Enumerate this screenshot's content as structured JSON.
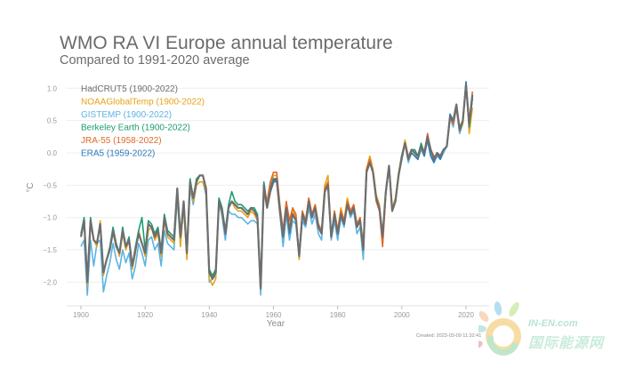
{
  "chart_data": {
    "type": "line",
    "title": "WMO RA VI Europe annual temperature",
    "subtitle": "Compared to 1991-2020 average",
    "xlabel": "Year",
    "ylabel": "°C",
    "xlim": [
      1896,
      2024
    ],
    "ylim": [
      -2.35,
      1.2
    ],
    "grid": true,
    "legend_placement": "top-left",
    "x_ticks": [
      1900,
      1920,
      1940,
      1960,
      1980,
      2000,
      2020
    ],
    "x_tick_labels": [
      "1900",
      "1920",
      "1940",
      "1960",
      "1980",
      "2000",
      "2020"
    ],
    "y_ticks": [
      1.0,
      0.5,
      0.0,
      -0.5,
      -1.0,
      -1.5,
      -2.0
    ],
    "y_tick_labels": [
      "1.0",
      "0.5",
      "0.0",
      "−0.5",
      "−1.0",
      "−1.5",
      "−2.0"
    ],
    "series": [
      {
        "name": "HadCRUT5 (1900-2022)",
        "color": "#6e6e6e",
        "start_year": 1900,
        "values": [
          -1.3,
          -1.05,
          -2.0,
          -1.05,
          -1.35,
          -1.4,
          -1.1,
          -1.85,
          -1.65,
          -1.5,
          -1.2,
          -1.45,
          -1.55,
          -1.2,
          -1.45,
          -1.35,
          -1.75,
          -1.5,
          -1.25,
          -1.4,
          -1.55,
          -1.1,
          -1.15,
          -1.3,
          -1.2,
          -1.55,
          -1.0,
          -1.25,
          -1.3,
          -1.35,
          -0.55,
          -1.3,
          -0.75,
          -1.55,
          -0.45,
          -0.7,
          -0.45,
          -0.35,
          -0.35,
          -0.55,
          -1.85,
          -1.95,
          -1.85,
          -0.75,
          -0.9,
          -1.25,
          -0.85,
          -0.75,
          -0.8,
          -0.85,
          -0.85,
          -0.9,
          -0.95,
          -0.85,
          -0.9,
          -1.0,
          -2.1,
          -0.5,
          -0.85,
          -0.6,
          -0.45,
          -0.4,
          -0.9,
          -1.3,
          -0.85,
          -1.2,
          -0.95,
          -1.05,
          -1.6,
          -0.95,
          -1.1,
          -0.75,
          -1.0,
          -0.85,
          -1.15,
          -1.25,
          -0.6,
          -0.5,
          -1.3,
          -0.95,
          -1.25,
          -0.95,
          -1.1,
          -0.8,
          -0.95,
          -0.85,
          -1.15,
          -1.05,
          -1.5,
          -0.3,
          -0.15,
          -0.3,
          -0.7,
          -0.85,
          -1.3,
          -0.6,
          -0.2,
          -0.9,
          -0.75,
          -0.35,
          -0.05,
          0.15,
          -0.1,
          0.05,
          0.0,
          -0.05,
          0.1,
          0.0,
          0.25,
          0.05,
          -0.1,
          0.0,
          -0.05,
          0.05,
          0.1,
          0.55,
          0.5,
          0.75,
          0.35,
          0.5,
          1.05,
          0.45,
          0.9
        ]
      },
      {
        "name": "NOAAGlobalTemp (1900-2022)",
        "color": "#e8a317",
        "start_year": 1900,
        "values": [
          -1.3,
          -1.05,
          -2.05,
          -1.1,
          -1.35,
          -1.45,
          -1.05,
          -1.9,
          -1.65,
          -1.5,
          -1.25,
          -1.4,
          -1.6,
          -1.25,
          -1.5,
          -1.35,
          -1.8,
          -1.55,
          -1.2,
          -1.4,
          -1.6,
          -1.2,
          -1.15,
          -1.35,
          -1.25,
          -1.6,
          -1.05,
          -1.3,
          -1.35,
          -1.4,
          -0.6,
          -1.45,
          -0.8,
          -1.65,
          -0.5,
          -0.75,
          -0.5,
          -0.45,
          -0.45,
          -0.6,
          -1.95,
          -2.05,
          -1.95,
          -0.7,
          -0.95,
          -1.25,
          -0.85,
          -0.75,
          -0.85,
          -0.9,
          -0.9,
          -0.95,
          -1.0,
          -0.9,
          -0.95,
          -1.05,
          -2.0,
          -0.5,
          -0.8,
          -0.5,
          -0.35,
          -0.35,
          -0.85,
          -1.25,
          -0.8,
          -1.15,
          -0.9,
          -1.0,
          -1.65,
          -0.9,
          -1.05,
          -0.7,
          -0.95,
          -0.8,
          -1.1,
          -1.2,
          -0.5,
          -0.35,
          -1.3,
          -0.9,
          -1.2,
          -0.85,
          -1.05,
          -0.7,
          -0.9,
          -0.8,
          -1.1,
          -1.0,
          -1.45,
          -0.25,
          -0.05,
          -0.25,
          -0.65,
          -0.8,
          -1.35,
          -0.6,
          -0.2,
          -0.85,
          -0.7,
          -0.3,
          -0.05,
          0.2,
          -0.05,
          0.05,
          0.0,
          -0.1,
          0.1,
          -0.05,
          0.25,
          0.05,
          -0.05,
          -0.05,
          -0.05,
          0.05,
          0.1,
          0.6,
          0.45,
          0.7,
          0.35,
          0.45,
          1.1,
          0.3,
          0.7
        ]
      },
      {
        "name": "GISTEMP (1900-2022)",
        "color": "#5bb4e5",
        "start_year": 1900,
        "values": [
          -1.45,
          -1.35,
          -2.2,
          -1.35,
          -1.75,
          -1.4,
          -1.35,
          -2.15,
          -1.9,
          -1.7,
          -1.4,
          -1.65,
          -1.8,
          -1.5,
          -1.7,
          -1.55,
          -1.95,
          -1.75,
          -1.4,
          -1.55,
          -1.75,
          -1.35,
          -1.3,
          -1.5,
          -1.4,
          -1.75,
          -1.2,
          -1.4,
          -1.45,
          -1.5,
          -0.7,
          -1.4,
          -0.85,
          -1.6,
          -0.55,
          -0.8,
          -0.5,
          -0.45,
          -0.45,
          -0.65,
          -2.0,
          -1.95,
          -1.9,
          -0.75,
          -1.0,
          -1.35,
          -0.9,
          -0.95,
          -0.95,
          -1.0,
          -1.0,
          -1.05,
          -1.1,
          -1.05,
          -1.05,
          -1.1,
          -2.2,
          -0.6,
          -0.85,
          -0.6,
          -0.45,
          -0.45,
          -0.95,
          -1.45,
          -0.95,
          -1.35,
          -1.05,
          -1.1,
          -1.6,
          -1.05,
          -1.15,
          -0.85,
          -1.1,
          -0.95,
          -1.25,
          -1.35,
          -0.6,
          -0.5,
          -1.35,
          -1.05,
          -1.35,
          -1.0,
          -1.15,
          -0.8,
          -1.0,
          -0.9,
          -1.25,
          -1.15,
          -1.65,
          -0.3,
          -0.15,
          -0.3,
          -0.7,
          -0.85,
          -1.25,
          -0.65,
          -0.2,
          -0.9,
          -0.75,
          -0.35,
          -0.1,
          0.15,
          -0.15,
          0.0,
          -0.05,
          -0.1,
          0.05,
          -0.05,
          0.2,
          -0.05,
          -0.15,
          -0.05,
          -0.1,
          0.0,
          0.1,
          0.55,
          0.4,
          0.7,
          0.3,
          0.45,
          1.1,
          0.4,
          0.85
        ]
      },
      {
        "name": "Berkeley Earth (1900-2022)",
        "color": "#1a9e72",
        "start_year": 1900,
        "values": [
          -1.25,
          -1.0,
          -1.95,
          -1.0,
          -1.35,
          -1.4,
          -1.1,
          -1.85,
          -1.65,
          -1.45,
          -1.15,
          -1.4,
          -1.55,
          -1.15,
          -1.45,
          -1.3,
          -1.75,
          -1.45,
          -1.2,
          -1.0,
          -1.5,
          -1.05,
          -1.1,
          -1.25,
          -1.15,
          -1.5,
          -0.95,
          -1.2,
          -1.25,
          -1.3,
          -0.55,
          -1.3,
          -0.75,
          -1.55,
          -0.4,
          -0.7,
          -0.4,
          -0.35,
          -0.35,
          -0.55,
          -1.8,
          -1.9,
          -1.8,
          -0.7,
          -0.85,
          -1.2,
          -0.8,
          -0.6,
          -0.75,
          -0.8,
          -0.8,
          -0.85,
          -0.9,
          -0.85,
          -0.85,
          -0.95,
          -2.05,
          -0.45,
          -0.8,
          -0.55,
          -0.4,
          -0.4,
          -0.9,
          -1.3,
          -0.85,
          -1.2,
          -0.95,
          -1.05,
          -1.6,
          -0.95,
          -1.1,
          -0.75,
          -1.0,
          -0.85,
          -1.15,
          -1.25,
          -0.6,
          -0.5,
          -1.3,
          -0.95,
          -1.25,
          -0.95,
          -1.1,
          -0.8,
          -0.95,
          -0.85,
          -1.15,
          -1.05,
          -1.5,
          -0.3,
          -0.15,
          -0.3,
          -0.7,
          -0.85,
          -1.3,
          -0.6,
          -0.2,
          -0.9,
          -0.75,
          -0.35,
          -0.05,
          0.15,
          -0.1,
          0.05,
          0.05,
          -0.05,
          0.15,
          0.0,
          0.25,
          0.05,
          -0.1,
          0.0,
          -0.05,
          0.05,
          0.1,
          0.55,
          0.5,
          0.7,
          0.35,
          0.5,
          1.05,
          0.4,
          0.85
        ]
      },
      {
        "name": "JRA-55 (1958-2022)",
        "color": "#e0692a",
        "start_year": 1958,
        "values": [
          -0.75,
          -0.45,
          -0.3,
          -0.3,
          -0.8,
          -1.2,
          -0.75,
          -1.05,
          -0.85,
          -0.95,
          -1.6,
          -0.9,
          -1.05,
          -0.7,
          -0.95,
          -0.8,
          -1.1,
          -1.2,
          -0.55,
          -0.45,
          -1.3,
          -0.9,
          -1.2,
          -0.9,
          -1.05,
          -0.75,
          -0.9,
          -0.8,
          -1.1,
          -1.0,
          -1.45,
          -0.25,
          -0.1,
          -0.3,
          -0.75,
          -0.9,
          -1.45,
          -0.65,
          -0.2,
          -0.85,
          -0.75,
          -0.35,
          -0.05,
          0.15,
          -0.1,
          0.05,
          0.0,
          -0.05,
          0.1,
          0.0,
          0.3,
          0.05,
          -0.05,
          -0.05,
          -0.05,
          0.05,
          0.1,
          0.55,
          0.45,
          0.7,
          0.35,
          0.5,
          1.05,
          0.45,
          0.95
        ]
      },
      {
        "name": "ERA5 (1959-2022)",
        "color": "#2b7bba",
        "start_year": 1959,
        "values": [
          -0.55,
          -0.4,
          -0.45,
          -0.85,
          -1.3,
          -0.85,
          -1.25,
          -0.95,
          -1.05,
          -1.6,
          -0.95,
          -1.1,
          -0.75,
          -1.0,
          -0.85,
          -1.15,
          -1.25,
          -0.6,
          -0.5,
          -1.3,
          -0.95,
          -1.25,
          -0.95,
          -1.1,
          -0.8,
          -0.95,
          -0.85,
          -1.15,
          -1.05,
          -1.5,
          -0.3,
          -0.15,
          -0.3,
          -0.7,
          -0.85,
          -1.3,
          -0.6,
          -0.2,
          -0.9,
          -0.75,
          -0.35,
          -0.1,
          0.15,
          -0.1,
          0.0,
          -0.05,
          -0.1,
          0.1,
          -0.05,
          0.2,
          -0.05,
          -0.15,
          0.0,
          -0.1,
          0.05,
          0.1,
          0.6,
          0.5,
          0.7,
          0.4,
          0.5,
          1.1,
          0.45,
          0.85
        ]
      }
    ]
  },
  "footer": {
    "created": "Created: 2023-03-09 11:32:41"
  },
  "watermark": {
    "brand_en": "IN-EN.com",
    "brand_cn": "国际能源网"
  }
}
